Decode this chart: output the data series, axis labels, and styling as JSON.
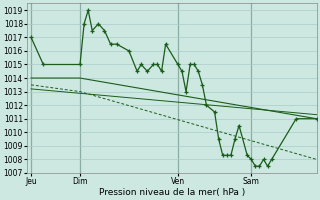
{
  "bg_color": "#cce8e0",
  "grid_color": "#aacccc",
  "line_color": "#1a5c1a",
  "ylabel_text": "Pression niveau de la mer( hPa )",
  "ylim": [
    1007,
    1019.5
  ],
  "yticks": [
    1007,
    1008,
    1009,
    1010,
    1011,
    1012,
    1013,
    1014,
    1015,
    1016,
    1017,
    1018,
    1019
  ],
  "xtick_labels": [
    "Jeu",
    "Dim",
    "Ven",
    "Sam"
  ],
  "xtick_positions": [
    0,
    24,
    72,
    108
  ],
  "vlines": [
    0,
    24,
    72,
    108
  ],
  "xlim": [
    -2,
    140
  ],
  "series0": {
    "x": [
      0,
      6,
      24,
      26,
      28,
      30,
      33,
      36,
      39,
      42,
      48,
      52,
      54,
      57,
      60,
      62,
      64,
      66,
      72,
      74,
      76,
      78,
      80,
      82,
      84,
      86,
      90,
      92,
      94,
      96,
      98,
      100,
      102,
      106,
      108,
      110,
      112,
      114,
      116,
      118,
      130,
      140
    ],
    "y": [
      1017,
      1015,
      1015,
      1018,
      1019,
      1017.5,
      1018,
      1017.5,
      1016.5,
      1016.5,
      1016,
      1014.5,
      1015,
      1014.5,
      1015,
      1015,
      1014.5,
      1016.5,
      1015,
      1014.5,
      1013,
      1015,
      1015,
      1014.5,
      1013.5,
      1012,
      1011.5,
      1009.5,
      1008.3,
      1008.3,
      1008.3,
      1009.5,
      1010.5,
      1008.3,
      1008,
      1007.5,
      1007.5,
      1008,
      1007.5,
      1008,
      1011,
      1011
    ]
  },
  "series1": {
    "x": [
      0,
      24,
      140
    ],
    "y": [
      1014.0,
      1014.0,
      1011.0
    ]
  },
  "series2": {
    "x": [
      0,
      24,
      140
    ],
    "y": [
      1013.5,
      1013.0,
      1008.0
    ]
  },
  "series3": {
    "x": [
      0,
      140
    ],
    "y": [
      1013.2,
      1011.3
    ]
  }
}
